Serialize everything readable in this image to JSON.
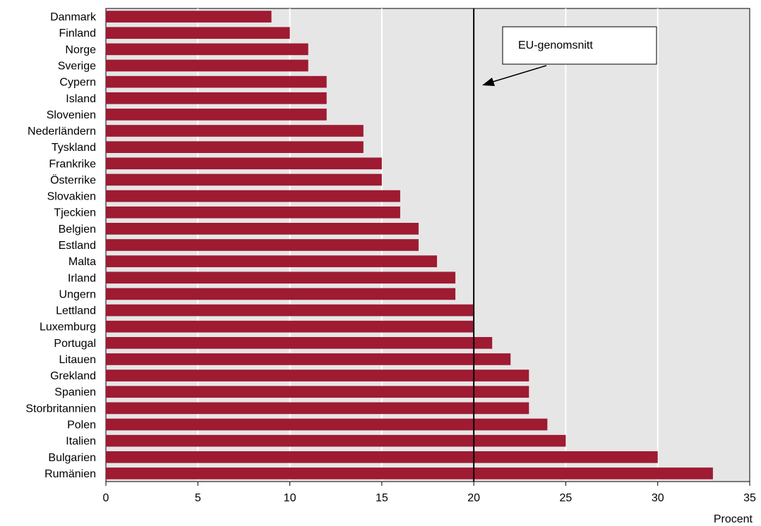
{
  "chart_data": {
    "type": "bar",
    "orientation": "horizontal",
    "categories": [
      "Danmark",
      "Finland",
      "Norge",
      "Sverige",
      "Cypern",
      "Island",
      "Slovenien",
      "Nederländern",
      "Tyskland",
      "Frankrike",
      "Österrike",
      "Slovakien",
      "Tjeckien",
      "Belgien",
      "Estland",
      "Malta",
      "Irland",
      "Ungern",
      "Lettland",
      "Luxemburg",
      "Portugal",
      "Litauen",
      "Grekland",
      "Spanien",
      "Storbritannien",
      "Polen",
      "Italien",
      "Bulgarien",
      "Rumänien"
    ],
    "values": [
      9,
      10,
      11,
      11,
      12,
      12,
      12,
      14,
      14,
      15,
      15,
      16,
      16,
      17,
      17,
      18,
      19,
      19,
      20,
      20,
      21,
      22,
      23,
      23,
      23,
      24,
      25,
      30,
      33
    ],
    "xlim": [
      0,
      35
    ],
    "xticks": [
      0,
      5,
      10,
      15,
      20,
      25,
      30,
      35
    ],
    "xlabel": "Procent",
    "grid": "vertical",
    "reference_line": {
      "value": 20,
      "label": "EU-genomsnitt"
    },
    "colors": {
      "bar": "#9e1b32",
      "plot_background": "#e6e6e6",
      "grid": "#ffffff",
      "reference_line": "#000000"
    }
  }
}
